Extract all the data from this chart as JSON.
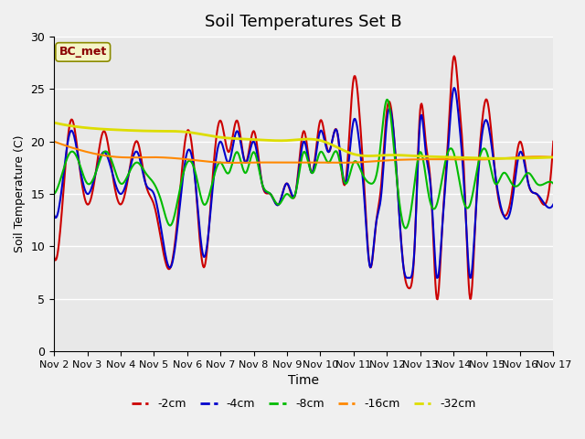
{
  "title": "Soil Temperatures Set B",
  "xlabel": "Time",
  "ylabel": "Soil Temperature (C)",
  "ylim": [
    0,
    30
  ],
  "xlim": [
    0,
    360
  ],
  "background_color": "#e8e8e8",
  "plot_bg_color": "#e8e8e8",
  "label_box": "BC_met",
  "series": {
    "-2cm": {
      "color": "#cc0000",
      "lw": 1.5
    },
    "-4cm": {
      "color": "#0000cc",
      "lw": 1.5
    },
    "-8cm": {
      "color": "#00bb00",
      "lw": 1.5
    },
    "-16cm": {
      "color": "#ff8800",
      "lw": 1.5
    },
    "-32cm": {
      "color": "#dddd00",
      "lw": 2.0
    }
  },
  "xtick_labels": [
    "Nov 2",
    "Nov 3",
    "Nov 4",
    "Nov 5",
    "Nov 6",
    "Nov 7",
    "Nov 8",
    "Nov 9",
    "Nov 10",
    "Nov 11",
    "Nov 12",
    "Nov 13",
    "Nov 14",
    "Nov 15",
    "Nov 16",
    "Nov 17"
  ],
  "xtick_positions": [
    0,
    24,
    48,
    72,
    96,
    120,
    144,
    168,
    192,
    216,
    240,
    264,
    288,
    312,
    336,
    360
  ],
  "ytick_positions": [
    0,
    5,
    10,
    15,
    20,
    25,
    30
  ],
  "grid_color": "#ffffff",
  "font": "DejaVu Sans"
}
